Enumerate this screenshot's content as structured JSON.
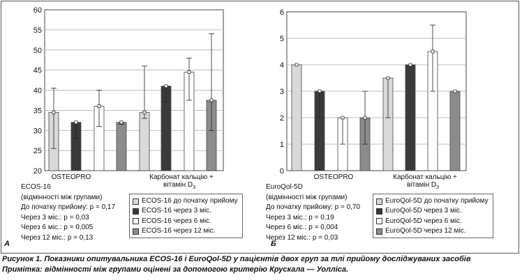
{
  "chart_data": [
    {
      "type": "bar",
      "panel": "А",
      "ylim": [
        20,
        60
      ],
      "yticks": [
        20,
        25,
        30,
        35,
        40,
        45,
        50,
        55,
        60
      ],
      "groups": [
        "OSTEOPRO",
        "Карбонат кальцію + вітамін D3"
      ],
      "group_label_line1": [
        "OSTEOPRO",
        "Карбонат кальцію +"
      ],
      "group_label_line2": [
        "",
        "вітамін D"
      ],
      "group_label_sub": [
        "",
        "3"
      ],
      "series": [
        {
          "name": "ECOS-16 до початку прийому",
          "color": "#d9d9d9",
          "values": [
            34.5,
            34.5
          ],
          "err_low": [
            25.5,
            33
          ],
          "err_high": [
            40.5,
            46
          ]
        },
        {
          "name": "ECOS-16 через 3 міс.",
          "color": "#3a3a3a",
          "values": [
            32,
            41
          ],
          "err_low": [
            28,
            37
          ],
          "err_high": [
            32,
            41
          ]
        },
        {
          "name": "ECOS-16 через 6 міс.",
          "color": "#ffffff",
          "values": [
            36,
            44.5
          ],
          "err_low": [
            31,
            37.5
          ],
          "err_high": [
            40,
            48
          ]
        },
        {
          "name": "ECOS-16 через 12 міс.",
          "color": "#8c8c8c",
          "values": [
            32,
            37.5
          ],
          "err_low": [
            31.5,
            30
          ],
          "err_high": [
            32,
            54
          ]
        }
      ],
      "stats": {
        "title": "ECOS-16",
        "subtitle": "(відмінності між групами)",
        "lines": [
          "До початку прийому: р = 0,17",
          "Через 3 міс.: р = 0,03",
          "Через 6 міс.: р = 0,005",
          "Через 12 міс.: р = 0,13"
        ]
      }
    },
    {
      "type": "bar",
      "panel": "Б",
      "ylim": [
        0,
        6
      ],
      "yticks": [
        0,
        1,
        2,
        3,
        4,
        5,
        6
      ],
      "groups": [
        "OSTEOPRO",
        "Карбонат кальцію + вітамін D3"
      ],
      "group_label_line1": [
        "OSTEOPRO",
        "Карбонат кальцію +"
      ],
      "group_label_line2": [
        "",
        "вітамін D"
      ],
      "group_label_sub": [
        "",
        "3"
      ],
      "series": [
        {
          "name": "EuroQol-5D до початку прийому",
          "color": "#d9d9d9",
          "values": [
            4,
            3.5
          ],
          "err_low": [
            4,
            2
          ],
          "err_high": [
            4,
            3.5
          ]
        },
        {
          "name": "EuroQol-5D через 3 міс.",
          "color": "#3a3a3a",
          "values": [
            3,
            4
          ],
          "err_low": [
            2,
            4
          ],
          "err_high": [
            3,
            4
          ]
        },
        {
          "name": "EuroQol-5D через 6 міс.",
          "color": "#ffffff",
          "values": [
            2,
            4.5
          ],
          "err_low": [
            1,
            3
          ],
          "err_high": [
            2,
            5.5
          ]
        },
        {
          "name": "EuroQol-5D через 12 міс.",
          "color": "#8c8c8c",
          "values": [
            2,
            3
          ],
          "err_low": [
            1,
            3
          ],
          "err_high": [
            3,
            3
          ]
        }
      ],
      "stats": {
        "title": "EuroQol-5D",
        "subtitle": "(відмінності між групами)",
        "lines": [
          "До початку прийому: р = 0,70",
          "Через 3 міс.: р = 0,19",
          "Через 6 міс.: р = 0,004",
          "Через 12 міс.: р = 0,03"
        ]
      }
    }
  ],
  "caption": {
    "line1": "Рисунок 1. Показники опитувальника ECOS-16 і EuroQol-5D у пацієнтів двох груп за тлі прийому досліджуваних засобів",
    "line2": "Примітка: відмінності між групами оцінені за допомогою критерію Крускала — Уолліса."
  }
}
